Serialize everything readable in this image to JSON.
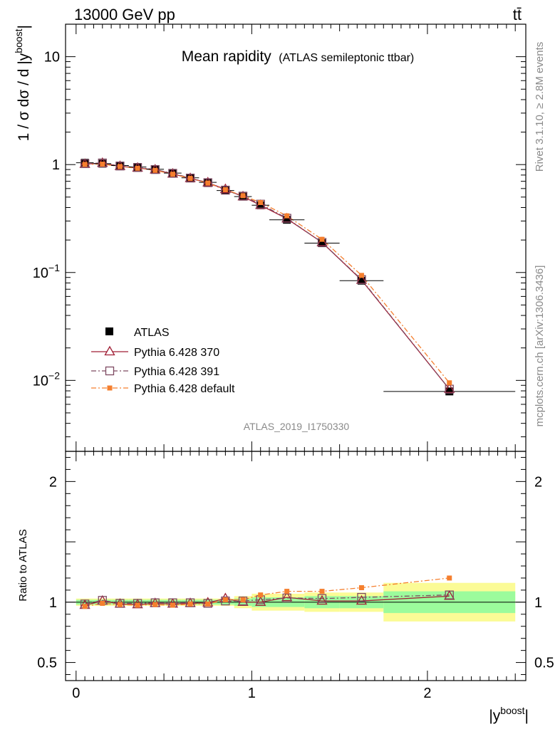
{
  "header": {
    "energy_label": "13000 GeV pp",
    "process_label": "tt̄"
  },
  "side": {
    "rivet_label": "Rivet 3.1.10, ≥ 2.8M events",
    "mcplots_label": "mcplots.cern.ch [arXiv:1306.3436]"
  },
  "chart_data": [
    {
      "type": "scatter",
      "title": "Mean rapidity",
      "subtitle": "(ATLAS semileptonic ttbar)",
      "watermark": "ATLAS_2019_I1750330",
      "ylabel": "1 / σ dσ / d |y^boost|",
      "xlabel": "|y^boost|",
      "yscale": "log",
      "ylim": [
        0.0022,
        20
      ],
      "xlim": [
        -0.06,
        2.56
      ],
      "y_ticks": [
        {
          "v": 10,
          "label": "10"
        },
        {
          "v": 1,
          "label": "1"
        },
        {
          "v": 0.1,
          "label": "10^-1"
        },
        {
          "v": 0.01,
          "label": "10^-2"
        }
      ],
      "legend_position": "lower-left",
      "bins": [
        [
          0,
          0.1
        ],
        [
          0.1,
          0.2
        ],
        [
          0.2,
          0.3
        ],
        [
          0.3,
          0.4
        ],
        [
          0.4,
          0.5
        ],
        [
          0.5,
          0.6
        ],
        [
          0.6,
          0.7
        ],
        [
          0.7,
          0.8
        ],
        [
          0.8,
          0.9
        ],
        [
          0.9,
          1.0
        ],
        [
          1.0,
          1.1
        ],
        [
          1.1,
          1.3
        ],
        [
          1.3,
          1.5
        ],
        [
          1.5,
          1.75
        ],
        [
          1.75,
          2.5
        ]
      ],
      "x": [
        0.05,
        0.15,
        0.25,
        0.35,
        0.45,
        0.55,
        0.65,
        0.75,
        0.85,
        0.95,
        1.05,
        1.2,
        1.4,
        1.625,
        2.125
      ],
      "series": [
        {
          "name": "ATLAS",
          "marker": "filled-square",
          "color": "#000000",
          "values": [
            1.04,
            1.02,
            0.98,
            0.95,
            0.905,
            0.835,
            0.755,
            0.685,
            0.575,
            0.505,
            0.42,
            0.308,
            0.187,
            0.084,
            0.0079
          ]
        },
        {
          "name": "Pythia 6.428 370",
          "marker": "open-triangle",
          "line": "solid",
          "color": "#a01f35",
          "values": [
            1.01,
            1.03,
            0.965,
            0.93,
            0.895,
            0.82,
            0.745,
            0.68,
            0.59,
            0.505,
            0.42,
            0.315,
            0.19,
            0.085,
            0.0083
          ]
        },
        {
          "name": "Pythia 6.428 391",
          "marker": "open-square",
          "line": "dashdot",
          "color": "#7e4a62",
          "values": [
            1.02,
            1.035,
            0.97,
            0.94,
            0.9,
            0.83,
            0.75,
            0.68,
            0.58,
            0.51,
            0.43,
            0.318,
            0.19,
            0.086,
            0.0083
          ]
        },
        {
          "name": "Pythia 6.428 default",
          "marker": "filled-square-small",
          "line": "dashdot",
          "color": "#f57f2e",
          "values": [
            1.005,
            1.01,
            0.96,
            0.925,
            0.885,
            0.815,
            0.745,
            0.675,
            0.585,
            0.515,
            0.445,
            0.335,
            0.203,
            0.094,
            0.0095
          ]
        }
      ]
    },
    {
      "type": "scatter",
      "ylabel": "Ratio to ATLAS",
      "xlabel": "|y^boost|",
      "ylim": [
        0.35,
        2.25
      ],
      "y_ticks": [
        {
          "v": 0.5,
          "label": "0.5"
        },
        {
          "v": 1,
          "label": "1"
        },
        {
          "v": 2,
          "label": "2"
        }
      ],
      "x_ticks": [
        {
          "v": 0,
          "label": "0"
        },
        {
          "v": 1,
          "label": "1"
        },
        {
          "v": 2,
          "label": "2"
        }
      ],
      "band_colors": {
        "inner": "#9cfb9c",
        "outer": "#fbfb96"
      },
      "band_inner": [
        0.02,
        0.02,
        0.02,
        0.02,
        0.02,
        0.02,
        0.02,
        0.02,
        0.02,
        0.03,
        0.04,
        0.04,
        0.05,
        0.05,
        0.09
      ],
      "band_outer": [
        0.03,
        0.03,
        0.03,
        0.03,
        0.03,
        0.03,
        0.03,
        0.03,
        0.03,
        0.05,
        0.07,
        0.07,
        0.08,
        0.08,
        0.16
      ],
      "series": [
        {
          "name": "Pythia 6.428 370",
          "values": [
            0.975,
            1.01,
            0.985,
            0.98,
            0.99,
            0.985,
            0.99,
            0.995,
            1.03,
            1.0,
            1.0,
            1.04,
            1.01,
            1.01,
            1.05
          ]
        },
        {
          "name": "Pythia 6.428 391",
          "values": [
            0.985,
            1.015,
            0.99,
            0.99,
            0.995,
            0.995,
            0.995,
            0.99,
            1.01,
            1.01,
            1.02,
            1.035,
            1.03,
            1.04,
            1.06
          ]
        },
        {
          "name": "Pythia 6.428 default",
          "values": [
            0.965,
            0.99,
            0.98,
            0.975,
            0.98,
            0.975,
            0.985,
            0.985,
            1.02,
            1.02,
            1.06,
            1.09,
            1.09,
            1.12,
            1.2
          ]
        }
      ]
    }
  ]
}
